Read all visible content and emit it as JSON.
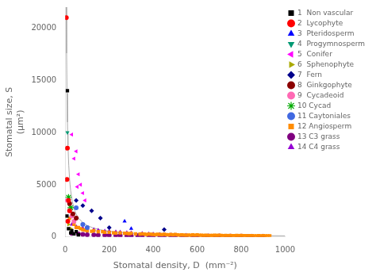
{
  "chart_data": {
    "type": "scatter",
    "xlabel": "Stomatal density, D  (mm⁻²)",
    "ylabel": "Stomatal size, S\n(μm²)",
    "xlim": [
      0,
      1000
    ],
    "ylim": [
      0,
      22000
    ],
    "xticks": [
      0,
      200,
      400,
      600,
      800,
      1000
    ],
    "yticks": [
      0,
      5000,
      10000,
      15000,
      20000
    ],
    "grid": false,
    "legend": "upper right",
    "series": [
      {
        "type": "line",
        "color": "#aaaaaa",
        "line_style": "solid",
        "x": [
          5,
          6.25,
          8,
          10,
          11,
          12.5,
          16,
          20,
          22,
          25,
          32,
          40,
          44,
          50,
          55,
          62.5,
          80,
          100,
          125,
          160,
          200,
          250,
          320,
          400,
          500,
          625,
          800,
          1000
        ],
        "values": [
          22000,
          17600,
          13750,
          11000,
          10000,
          8800,
          6875,
          5500,
          5000,
          4400,
          3437.5,
          2750,
          2500,
          2200,
          2000,
          1760,
          1375,
          1100,
          880,
          687.5,
          550,
          440,
          343.75,
          275,
          220,
          176,
          137.5,
          110
        ]
      },
      {
        "name": "1  Non vascular",
        "type": "scatter",
        "color": "#000000",
        "marker": "square",
        "x": [
          10,
          15,
          25,
          40,
          50,
          60,
          8,
          30
        ],
        "values": [
          14000,
          800,
          400,
          300,
          500,
          200,
          2000,
          600
        ]
      },
      {
        "name": "2  Lycophyte",
        "type": "scatter",
        "color": "#ff0000",
        "marker": "circle",
        "x": [
          5,
          10,
          15,
          20,
          8,
          12
        ],
        "values": [
          21000,
          8500,
          3500,
          2500,
          5500,
          1500
        ]
      },
      {
        "name": "3  Pteridosperm",
        "type": "scatter",
        "color": "#0000ff",
        "marker": "triangle-up",
        "x": [
          270,
          300
        ],
        "values": [
          1500,
          800
        ]
      },
      {
        "name": "4  Progymnosperm",
        "type": "scatter",
        "color": "#009973",
        "marker": "triangle-down",
        "x": [
          10
        ],
        "values": [
          10000
        ]
      },
      {
        "name": "5  Conifer",
        "type": "scatter",
        "color": "#ff00ff",
        "marker": "triangle-left",
        "x": [
          30,
          50,
          70,
          80,
          60,
          40,
          90,
          55
        ],
        "values": [
          9800,
          8200,
          5000,
          4200,
          6000,
          7500,
          3500,
          4800
        ]
      },
      {
        "name": "6  Sphenophyte",
        "type": "scatter",
        "color": "#aaaa00",
        "marker": "triangle-right",
        "x": [
          15,
          25
        ],
        "values": [
          1200,
          800
        ]
      },
      {
        "name": "7  Fern",
        "type": "scatter",
        "color": "#00008b",
        "marker": "diamond",
        "x": [
          80,
          120,
          160,
          200,
          450,
          50
        ],
        "values": [
          3000,
          2500,
          1800,
          900,
          700,
          3500
        ]
      },
      {
        "name": "8  Ginkgophyte",
        "type": "scatter",
        "color": "#8b0000",
        "marker": "circle",
        "x": [
          20,
          35,
          50
        ],
        "values": [
          3200,
          2200,
          1800
        ]
      },
      {
        "name": "9  Cycadeoid",
        "type": "scatter",
        "color": "#ff69b4",
        "marker": "circle",
        "x": [
          10,
          20,
          30,
          40
        ],
        "values": [
          3500,
          2500,
          2000,
          1500
        ]
      },
      {
        "name": "10 Cycad",
        "type": "scatter",
        "color": "#00aa00",
        "marker": "star",
        "x": [
          15,
          25
        ],
        "values": [
          3800,
          2800
        ]
      },
      {
        "name": "11 Caytoniales",
        "type": "scatter",
        "color": "#4169e1",
        "marker": "circle",
        "x": [
          50,
          80,
          100
        ],
        "values": [
          2800,
          1200,
          900
        ]
      },
      {
        "name": "12 Angiosperm",
        "type": "scatter",
        "color": "#ff8c00",
        "marker": "square",
        "x": [
          20,
          30,
          40,
          50,
          60,
          70,
          80,
          90,
          100,
          120,
          130,
          150,
          170,
          180,
          200,
          220,
          230,
          250,
          270,
          280,
          290,
          300,
          320,
          340,
          350,
          360,
          370,
          380,
          390,
          400,
          410,
          420,
          430,
          440,
          450,
          460,
          470,
          480,
          490,
          500,
          510,
          520,
          530,
          540,
          550,
          560,
          570,
          580,
          590,
          600,
          610,
          620,
          630,
          640,
          650,
          660,
          670,
          680,
          690,
          700,
          710,
          720,
          730,
          740,
          750,
          760,
          770,
          780,
          790,
          800,
          810,
          820,
          830,
          840,
          850,
          860,
          870,
          880,
          890,
          900,
          910,
          920,
          930
        ],
        "values": [
          1800,
          2000,
          1200,
          900,
          900,
          800,
          700,
          650,
          600,
          550,
          600,
          500,
          500,
          450,
          450,
          400,
          380,
          400,
          360,
          350,
          320,
          350,
          300,
          280,
          300,
          270,
          250,
          280,
          260,
          240,
          230,
          260,
          240,
          220,
          260,
          220,
          200,
          240,
          200,
          240,
          200,
          180,
          200,
          180,
          170,
          180,
          160,
          200,
          160,
          200,
          160,
          160,
          150,
          160,
          150,
          140,
          150,
          170,
          140,
          160,
          140,
          130,
          140,
          130,
          150,
          130,
          125,
          150,
          120,
          140,
          120,
          130,
          115,
          125,
          130,
          115,
          110,
          130,
          110,
          120,
          110,
          105,
          100
        ]
      },
      {
        "name": "13 C3 grass",
        "type": "scatter",
        "color": "#800080",
        "marker": "circle",
        "x": [
          30,
          60,
          80,
          100,
          130,
          150,
          180,
          200,
          230,
          250,
          280,
          300,
          330,
          350,
          380,
          400,
          430,
          450,
          480,
          500,
          530,
          550,
          580,
          600,
          630,
          650,
          680,
          700,
          730,
          750,
          780,
          800,
          830,
          850,
          880,
          900
        ],
        "values": [
          350,
          280,
          250,
          220,
          200,
          180,
          170,
          160,
          150,
          140,
          130,
          125,
          115,
          110,
          105,
          100,
          95,
          90,
          85,
          80,
          75,
          70,
          65,
          62,
          58,
          55,
          52,
          50,
          48,
          45,
          43,
          42,
          40,
          38,
          36,
          35
        ]
      },
      {
        "name": "14 C4 grass",
        "type": "scatter",
        "color": "#9400d3",
        "marker": "triangle-up",
        "x": [
          30,
          50,
          80,
          100,
          130,
          150,
          180,
          200,
          230,
          250,
          280,
          300,
          350,
          380,
          400,
          430,
          450,
          480,
          500,
          550,
          580,
          600,
          650,
          700,
          750,
          800,
          850,
          900
        ],
        "values": [
          1200,
          1000,
          850,
          800,
          700,
          650,
          580,
          550,
          500,
          480,
          430,
          400,
          350,
          300,
          280,
          260,
          240,
          220,
          200,
          180,
          160,
          150,
          140,
          130,
          120,
          110,
          105,
          100
        ]
      }
    ]
  }
}
